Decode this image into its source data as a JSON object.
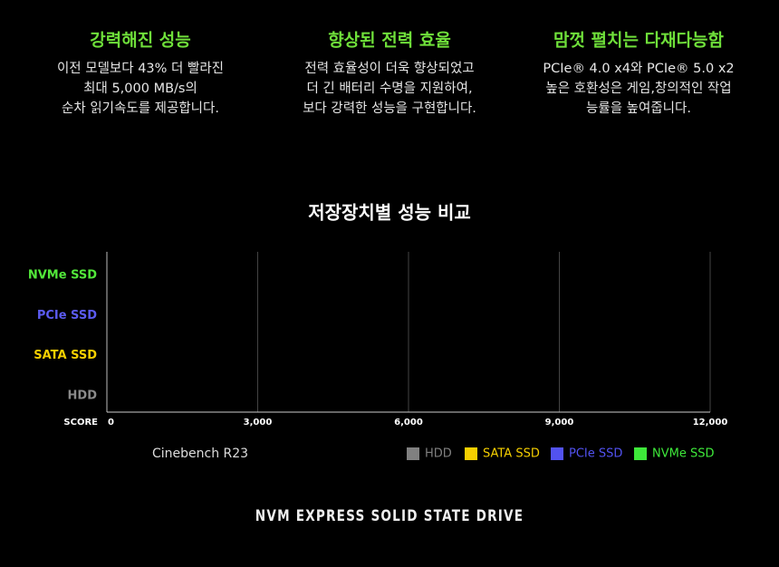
{
  "features": [
    {
      "title": "강력해진 성능",
      "lines": [
        "이전 모델보다 43% 더 빨라진",
        "최대 5,000 MB/s의",
        "순차 읽기속도를 제공합니다."
      ]
    },
    {
      "title": "향상된 전력 효율",
      "lines": [
        "전력 효율성이 더욱 향상되었고",
        "더 긴 배터리 수명을 지원하여,",
        "보다 강력한 성능을 구현합니다."
      ]
    },
    {
      "title": "맘껏 펼치는 다재다능함",
      "lines": [
        "PCIe® 4.0 x4와 PCIe® 5.0 x2",
        "높은 호환성은 게임,창의적인 작업",
        "능률을 높여줍니다."
      ]
    }
  ],
  "chart_data": {
    "type": "bar",
    "orientation": "horizontal",
    "title": "저장장치별 성능 비교",
    "note": "Cinebench R23",
    "categories": [
      "NVMe SSD",
      "PCIe SSD",
      "SATA SSD",
      "HDD"
    ],
    "category_colors": [
      "#52e83a",
      "#5b5bf0",
      "#f5cf00",
      "#8a8a8a"
    ],
    "xlabel": "SCORE",
    "xlim": [
      0,
      12000
    ],
    "xticks": [
      0,
      {
        "value": 3000,
        "label": "3,000"
      },
      {
        "value": 6000,
        "label": "6,000"
      },
      {
        "value": 9000,
        "label": "9,000"
      },
      {
        "value": 12000,
        "label": "12,000"
      }
    ],
    "grid": true,
    "series": [
      {
        "name": "HDD",
        "color": "#808080"
      },
      {
        "name": "SATA SSD",
        "color": "#f5cf00"
      },
      {
        "name": "PCIe SSD",
        "color": "#5252f0"
      },
      {
        "name": "NVMe SSD",
        "color": "#3ee83a"
      }
    ],
    "legend": "bottom-right"
  },
  "footer": "NVM EXPRESS SOLID STATE DRIVE"
}
